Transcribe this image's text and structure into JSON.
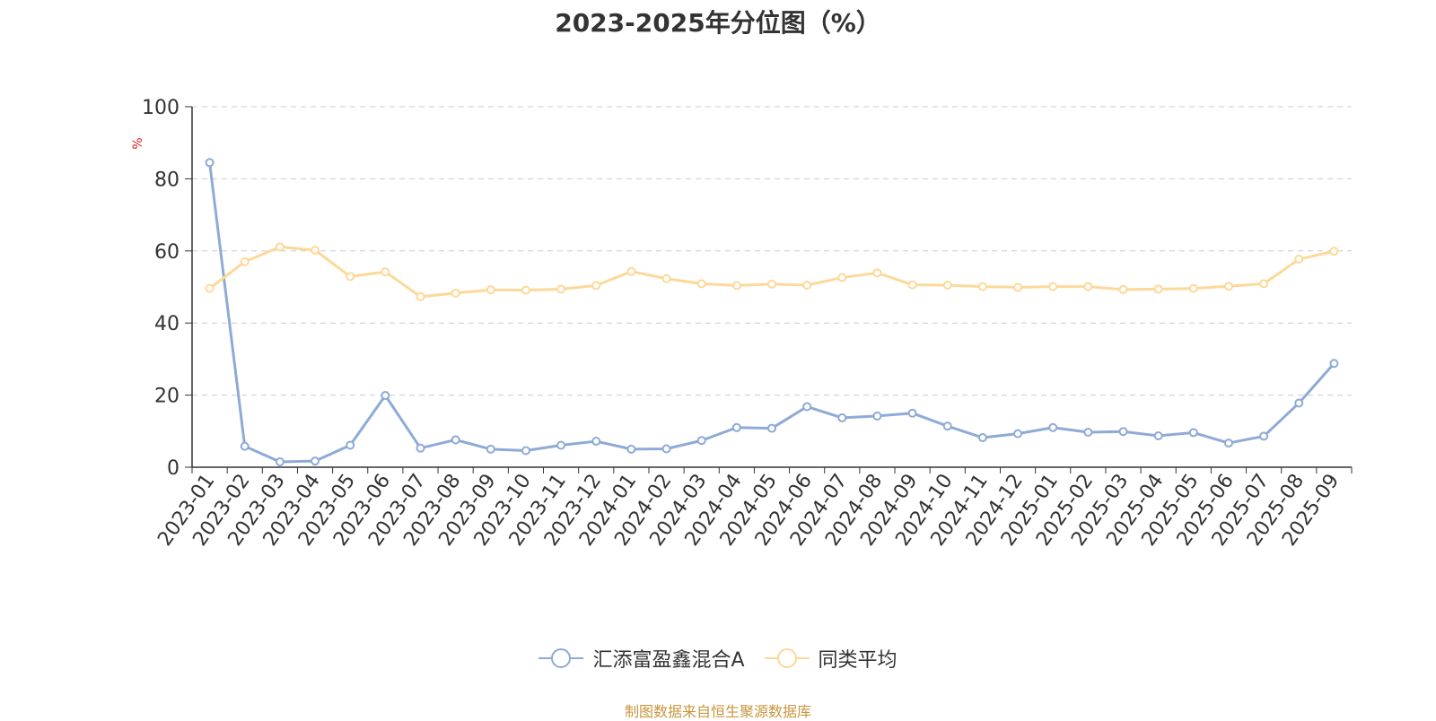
{
  "title": "2023-2025年分位图（%）",
  "source": "制图数据来自恒生聚源数据库",
  "colors": {
    "series1": "#8eaad6",
    "series2": "#fdd899",
    "grid": "#cccccc",
    "axis": "#333333",
    "unit": "#e02020"
  },
  "chart_data": {
    "type": "line",
    "ylabel": "%",
    "ylim": [
      0,
      100
    ],
    "yticks": [
      0,
      20,
      40,
      60,
      80,
      100
    ],
    "grid": true,
    "legend_position": "bottom",
    "categories": [
      "2023-01",
      "2023-02",
      "2023-03",
      "2023-04",
      "2023-05",
      "2023-06",
      "2023-07",
      "2023-08",
      "2023-09",
      "2023-10",
      "2023-11",
      "2023-12",
      "2024-01",
      "2024-02",
      "2024-03",
      "2024-04",
      "2024-05",
      "2024-06",
      "2024-07",
      "2024-08",
      "2024-09",
      "2024-10",
      "2024-11",
      "2024-12",
      "2025-01",
      "2025-02",
      "2025-03",
      "2025-04",
      "2025-05",
      "2025-06",
      "2025-07",
      "2025-08",
      "2025-09"
    ],
    "series": [
      {
        "name": "汇添富盈鑫混合A",
        "color": "#8eaad6",
        "values": [
          84.5,
          5.8,
          1.5,
          1.7,
          6.1,
          19.9,
          5.3,
          7.6,
          5.0,
          4.6,
          6.1,
          7.2,
          5.0,
          5.1,
          7.4,
          11.0,
          10.8,
          16.8,
          13.7,
          14.2,
          15.0,
          11.4,
          8.2,
          9.3,
          11.0,
          9.7,
          9.9,
          8.7,
          9.6,
          6.7,
          8.6,
          17.8,
          28.8
        ]
      },
      {
        "name": "同类平均",
        "color": "#fdd899",
        "values": [
          49.6,
          57.0,
          61.1,
          60.2,
          52.9,
          54.2,
          47.3,
          48.3,
          49.2,
          49.1,
          49.4,
          50.4,
          54.3,
          52.3,
          50.9,
          50.4,
          50.8,
          50.5,
          52.6,
          53.9,
          50.6,
          50.5,
          50.1,
          49.9,
          50.1,
          50.1,
          49.3,
          49.4,
          49.6,
          50.2,
          50.9,
          57.7,
          59.9
        ]
      }
    ]
  }
}
